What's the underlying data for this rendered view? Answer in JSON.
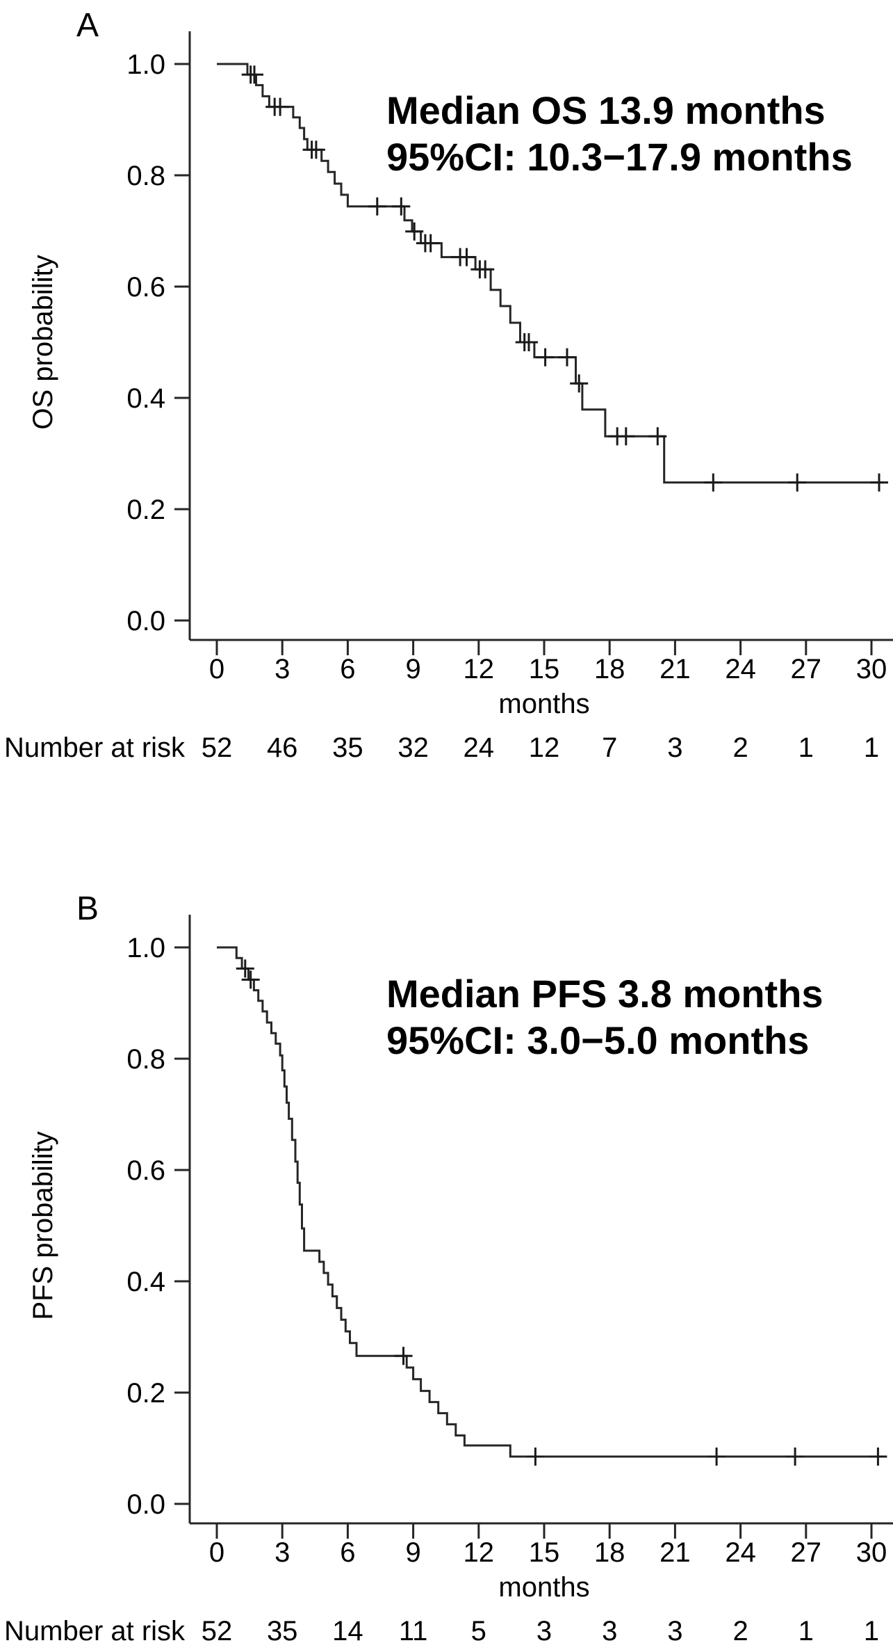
{
  "figure": {
    "background": "#ffffff",
    "line_color": "#262626",
    "text_color": "#000000"
  },
  "chart_data": [
    {
      "type": "line",
      "subtype": "kaplan-meier-step",
      "panel_label": "A",
      "annotation_lines": [
        "Median OS 13.9 months",
        "95%CI: 10.3−17.9 months"
      ],
      "xlabel": "months",
      "ylabel": "OS probability",
      "xlim": [
        0,
        31
      ],
      "ylim": [
        0.0,
        1.0
      ],
      "x_ticks": [
        0,
        3,
        6,
        9,
        12,
        15,
        18,
        21,
        24,
        27,
        30
      ],
      "y_tick_labels": [
        "1.0",
        "0.8",
        "0.6",
        "0.4",
        "0.2",
        "0.0"
      ],
      "grid": false,
      "curve_start": [
        0,
        1.0
      ],
      "curve_end_time": 30.55,
      "steps": [
        [
          1.4,
          0.981
        ],
        [
          1.8,
          0.962
        ],
        [
          2.1,
          0.942
        ],
        [
          2.4,
          0.923
        ],
        [
          3.5,
          0.904
        ],
        [
          3.8,
          0.885
        ],
        [
          4.0,
          0.865
        ],
        [
          4.15,
          0.846
        ],
        [
          4.8,
          0.826
        ],
        [
          5.1,
          0.806
        ],
        [
          5.4,
          0.785
        ],
        [
          5.7,
          0.765
        ],
        [
          6.0,
          0.744
        ],
        [
          8.6,
          0.719
        ],
        [
          8.95,
          0.699
        ],
        [
          9.35,
          0.678
        ],
        [
          10.3,
          0.653
        ],
        [
          11.85,
          0.631
        ],
        [
          12.55,
          0.594
        ],
        [
          13.0,
          0.565
        ],
        [
          13.45,
          0.535
        ],
        [
          13.9,
          0.5
        ],
        [
          14.55,
          0.473
        ],
        [
          16.45,
          0.426
        ],
        [
          16.75,
          0.379
        ],
        [
          17.8,
          0.331
        ],
        [
          20.5,
          0.248
        ]
      ],
      "censor_marks": [
        [
          1.55,
          0.981
        ],
        [
          1.72,
          0.981
        ],
        [
          2.65,
          0.923
        ],
        [
          2.9,
          0.923
        ],
        [
          4.35,
          0.846
        ],
        [
          4.55,
          0.846
        ],
        [
          7.35,
          0.744
        ],
        [
          8.45,
          0.744
        ],
        [
          9.05,
          0.699
        ],
        [
          9.55,
          0.678
        ],
        [
          9.8,
          0.678
        ],
        [
          11.15,
          0.653
        ],
        [
          11.45,
          0.653
        ],
        [
          12.05,
          0.631
        ],
        [
          12.3,
          0.631
        ],
        [
          14.1,
          0.5
        ],
        [
          14.3,
          0.5
        ],
        [
          15.05,
          0.473
        ],
        [
          16.05,
          0.473
        ],
        [
          16.6,
          0.426
        ],
        [
          18.35,
          0.331
        ],
        [
          18.75,
          0.331
        ],
        [
          20.2,
          0.331
        ],
        [
          22.75,
          0.248
        ],
        [
          26.6,
          0.248
        ],
        [
          30.35,
          0.248
        ]
      ],
      "number_at_risk": {
        "label": "Number at risk",
        "times": [
          0,
          3,
          6,
          9,
          12,
          15,
          18,
          21,
          24,
          27,
          30
        ],
        "values": [
          52,
          46,
          35,
          32,
          24,
          12,
          7,
          3,
          2,
          1,
          1
        ]
      }
    },
    {
      "type": "line",
      "subtype": "kaplan-meier-step",
      "panel_label": "B",
      "annotation_lines": [
        "Median PFS 3.8 months",
        "95%CI: 3.0−5.0 months"
      ],
      "xlabel": "months",
      "ylabel": "PFS probability",
      "xlim": [
        0,
        31
      ],
      "ylim": [
        0.0,
        1.0
      ],
      "x_ticks": [
        0,
        3,
        6,
        9,
        12,
        15,
        18,
        21,
        24,
        27,
        30
      ],
      "y_tick_labels": [
        "1.0",
        "0.8",
        "0.6",
        "0.4",
        "0.2",
        "0.0"
      ],
      "grid": false,
      "curve_start": [
        0,
        1.0
      ],
      "curve_end_time": 30.55,
      "steps": [
        [
          0.9,
          0.981
        ],
        [
          1.15,
          0.962
        ],
        [
          1.45,
          0.942
        ],
        [
          1.7,
          0.923
        ],
        [
          1.9,
          0.904
        ],
        [
          2.1,
          0.885
        ],
        [
          2.3,
          0.865
        ],
        [
          2.5,
          0.846
        ],
        [
          2.7,
          0.827
        ],
        [
          2.9,
          0.806
        ],
        [
          3.0,
          0.779
        ],
        [
          3.1,
          0.75
        ],
        [
          3.2,
          0.721
        ],
        [
          3.3,
          0.692
        ],
        [
          3.45,
          0.654
        ],
        [
          3.6,
          0.615
        ],
        [
          3.7,
          0.577
        ],
        [
          3.8,
          0.538
        ],
        [
          3.9,
          0.495
        ],
        [
          4.0,
          0.455
        ],
        [
          4.7,
          0.435
        ],
        [
          4.9,
          0.415
        ],
        [
          5.1,
          0.394
        ],
        [
          5.3,
          0.373
        ],
        [
          5.5,
          0.352
        ],
        [
          5.7,
          0.331
        ],
        [
          5.9,
          0.31
        ],
        [
          6.1,
          0.289
        ],
        [
          6.4,
          0.266
        ],
        [
          8.7,
          0.245
        ],
        [
          9.0,
          0.224
        ],
        [
          9.35,
          0.203
        ],
        [
          9.75,
          0.183
        ],
        [
          10.15,
          0.163
        ],
        [
          10.55,
          0.143
        ],
        [
          10.95,
          0.123
        ],
        [
          11.35,
          0.105
        ],
        [
          13.45,
          0.085
        ]
      ],
      "censor_marks": [
        [
          1.3,
          0.962
        ],
        [
          1.55,
          0.942
        ],
        [
          8.55,
          0.266
        ],
        [
          14.6,
          0.085
        ],
        [
          22.9,
          0.085
        ],
        [
          26.5,
          0.085
        ],
        [
          30.3,
          0.085
        ]
      ],
      "number_at_risk": {
        "label": "Number at risk",
        "times": [
          0,
          3,
          6,
          9,
          12,
          15,
          18,
          21,
          24,
          27,
          30
        ],
        "values": [
          52,
          35,
          14,
          11,
          5,
          3,
          3,
          3,
          2,
          1,
          1
        ]
      }
    }
  ]
}
